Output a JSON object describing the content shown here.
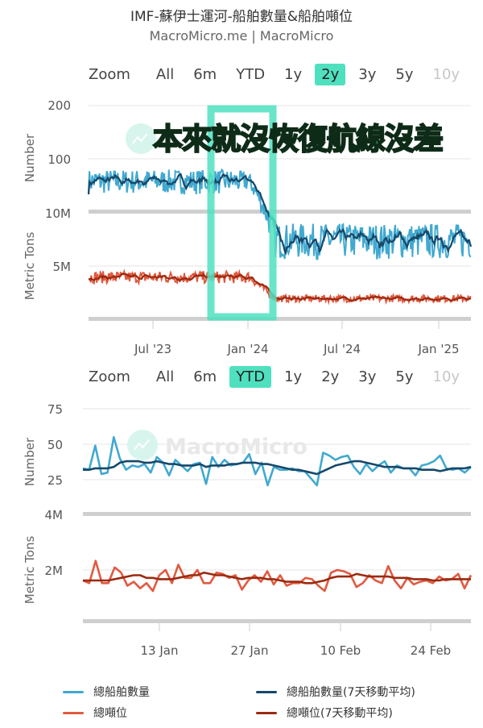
{
  "header": {
    "title": "IMF-蘇伊士運河-船舶數量&船舶噸位",
    "subtitle": "MacroMicro.me | MacroMicro"
  },
  "watermark": "MacroMicro",
  "annotation": {
    "text": "本來就沒恢復航線沒差",
    "highlight_color": "#4fe0bf"
  },
  "range_selector_top": {
    "label": "Zoom",
    "buttons": [
      "All",
      "6m",
      "YTD",
      "1y",
      "2y",
      "3y",
      "5y",
      "10y"
    ],
    "active": "2y",
    "disabled": [
      "10y"
    ]
  },
  "range_selector_bottom": {
    "label": "Zoom",
    "buttons": [
      "All",
      "6m",
      "YTD",
      "1y",
      "2y",
      "3y",
      "5y",
      "10y"
    ],
    "active": "YTD",
    "disabled": [
      "10y"
    ]
  },
  "legend": [
    {
      "name": "總船舶數量",
      "color": "#41a9d0"
    },
    {
      "name": "總船舶數量(7天移動平均)",
      "color": "#16486a"
    },
    {
      "name": "總噸位",
      "color": "#e05a40"
    },
    {
      "name": "總噸位(7天移動平均)",
      "color": "#9b2a10"
    }
  ],
  "chart_data": [
    {
      "type": "line",
      "title": "2y view",
      "x_ticks": [
        "Jul '23",
        "Jan '24",
        "Jul '24",
        "Jan '25"
      ],
      "x_range": [
        "2023-03",
        "2025-03"
      ],
      "panels": [
        {
          "ylabel": "Number",
          "y_ticks": [
            "100",
            "200"
          ],
          "ylim": [
            0,
            200
          ],
          "series": [
            {
              "name": "總船舶數量",
              "color": "#41a9d0",
              "segments": [
                {
                  "from": "2023-03",
                  "to": "2023-12",
                  "level": 75,
                  "noise": 12
                },
                {
                  "from": "2023-12",
                  "to": "2024-01",
                  "level": 75,
                  "noise": 10
                },
                {
                  "from": "2024-01",
                  "to": "2024-02",
                  "level_start": 75,
                  "level_end": 35,
                  "noise": 8
                },
                {
                  "from": "2024-02",
                  "to": "2025-03",
                  "level": 35,
                  "noise": 8
                }
              ]
            },
            {
              "name": "總船舶數量(7天移動平均)",
              "color": "#16486a"
            }
          ]
        },
        {
          "ylabel": "Metric Tons",
          "y_ticks": [
            "5M",
            "10M"
          ],
          "ylim": [
            0,
            10000000
          ],
          "series": [
            {
              "name": "總噸位",
              "color": "#e05a40",
              "segments": [
                {
                  "from": "2023-03",
                  "to": "2023-12",
                  "level": 3900000,
                  "noise": 600000
                },
                {
                  "from": "2023-12",
                  "to": "2024-01",
                  "level": 3900000,
                  "noise": 600000
                },
                {
                  "from": "2024-01",
                  "to": "2024-02",
                  "level_start": 3900000,
                  "level_end": 1800000,
                  "noise": 400000
                },
                {
                  "from": "2024-02",
                  "to": "2025-03",
                  "level": 1800000,
                  "noise": 350000
                }
              ]
            },
            {
              "name": "總噸位(7天移動平均)",
              "color": "#9b2a10"
            }
          ]
        }
      ],
      "highlight": {
        "from": "2023-12",
        "to": "2024-02"
      }
    },
    {
      "type": "line",
      "title": "YTD view",
      "x_ticks": [
        "13 Jan",
        "27 Jan",
        "10 Feb",
        "24 Feb"
      ],
      "panels": [
        {
          "ylabel": "Number",
          "y_ticks": [
            "25",
            "50",
            "75"
          ],
          "ylim": [
            0,
            75
          ],
          "series": [
            {
              "name": "總船舶數量",
              "color": "#41a9d0",
              "values": [
                33,
                32,
                49,
                29,
                30,
                55,
                40,
                32,
                35,
                34,
                36,
                30,
                41,
                37,
                28,
                39,
                35,
                31,
                36,
                37,
                22,
                41,
                34,
                39,
                35,
                36,
                37,
                43,
                29,
                37,
                21,
                34,
                32,
                32,
                33,
                31,
                31,
                26,
                21,
                44,
                42,
                39,
                41,
                42,
                34,
                29,
                36,
                31,
                35,
                38,
                30,
                35,
                33,
                33,
                28,
                35,
                36,
                38,
                42,
                33,
                32,
                33,
                30,
                34
              ]
            },
            {
              "name": "總船舶數量(7天移動平均)",
              "color": "#16486a",
              "values": [
                32,
                32,
                33,
                33,
                33,
                34,
                37,
                38,
                38,
                38,
                37,
                37,
                38,
                37,
                36,
                36,
                35,
                35,
                35,
                36,
                34,
                35,
                35,
                35,
                36,
                36,
                37,
                37,
                37,
                36,
                36,
                35,
                34,
                33,
                32,
                32,
                31,
                30,
                29,
                31,
                33,
                35,
                36,
                37,
                38,
                38,
                37,
                36,
                35,
                34,
                34,
                34,
                33,
                33,
                33,
                32,
                32,
                32,
                31,
                32,
                33,
                33,
                33,
                34
              ]
            }
          ]
        },
        {
          "ylabel": "Metric Tons",
          "y_ticks": [
            "2M",
            "4M"
          ],
          "ylim": [
            0,
            4000000
          ],
          "series": [
            {
              "name": "總噸位",
              "color": "#e05a40",
              "values": [
                1600000,
                1500000,
                2350000,
                1500000,
                1500000,
                2100000,
                1900000,
                1400000,
                1550000,
                1300000,
                1500000,
                1200000,
                1800000,
                2000000,
                1500000,
                2200000,
                1700000,
                1700000,
                2000000,
                1500000,
                1500000,
                1900000,
                1850000,
                1700000,
                1800000,
                1250000,
                1600000,
                1800000,
                1550000,
                1950000,
                1450000,
                1800000,
                1400000,
                1500000,
                1500000,
                1700000,
                1650000,
                1400000,
                1200000,
                1900000,
                2000000,
                1950000,
                1850000,
                1350000,
                1500000,
                1800000,
                1600000,
                1500000,
                2150000,
                1600000,
                1300000,
                1700000,
                1450000,
                1550000,
                1600000,
                1500000,
                1750000,
                1600000,
                1650000,
                1850000,
                1300000,
                1800000
              ]
            },
            {
              "name": "總噸位(7天移動平均)",
              "color": "#9b2a10",
              "values": [
                1600000,
                1600000,
                1600000,
                1600000,
                1600000,
                1650000,
                1700000,
                1750000,
                1800000,
                1800000,
                1700000,
                1700000,
                1650000,
                1650000,
                1650000,
                1700000,
                1750000,
                1800000,
                1800000,
                1900000,
                1850000,
                1800000,
                1800000,
                1750000,
                1700000,
                1650000,
                1700000,
                1700000,
                1700000,
                1650000,
                1650000,
                1600000,
                1550000,
                1550000,
                1550000,
                1500000,
                1500000,
                1550000,
                1600000,
                1700000,
                1750000,
                1750000,
                1750000,
                1850000,
                1800000,
                1750000,
                1750000,
                1750000,
                1750000,
                1700000,
                1700000,
                1700000,
                1650000,
                1650000,
                1650000,
                1600000,
                1600000,
                1650000,
                1650000,
                1650000,
                1650000,
                1650000
              ]
            }
          ]
        }
      ]
    }
  ]
}
